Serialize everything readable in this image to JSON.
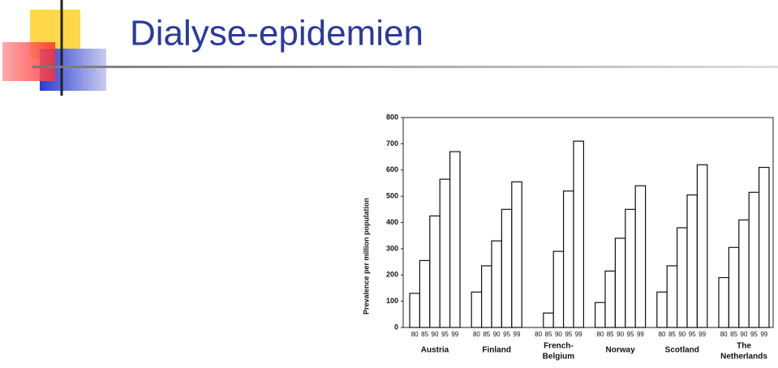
{
  "slide_title": "Dialyse-epidemien",
  "chart_data": {
    "type": "grouped-bar",
    "y_label": "Prevalence per million population",
    "ylim": [
      0,
      800
    ],
    "yticks": [
      0,
      100,
      200,
      300,
      400,
      500,
      600,
      700,
      800
    ],
    "color": "#ffffff",
    "edge_color": "#111111",
    "groups": [
      {
        "label_lines": [
          "Austria"
        ],
        "categories": [
          "80",
          "85",
          "90",
          "95",
          "99"
        ],
        "values": [
          130,
          255,
          425,
          565,
          670
        ]
      },
      {
        "label_lines": [
          "Finland"
        ],
        "categories": [
          "80",
          "85",
          "90",
          "95",
          "99"
        ],
        "values": [
          135,
          235,
          330,
          450,
          555
        ]
      },
      {
        "label_lines": [
          "French-",
          "Belgium"
        ],
        "categories": [
          "80",
          "85",
          "90",
          "95",
          "99"
        ],
        "values": [
          null,
          55,
          290,
          520,
          710
        ]
      },
      {
        "label_lines": [
          "Norway"
        ],
        "categories": [
          "80",
          "85",
          "90",
          "95",
          "99"
        ],
        "values": [
          95,
          215,
          340,
          450,
          540
        ]
      },
      {
        "label_lines": [
          "Scotland"
        ],
        "categories": [
          "80",
          "85",
          "90",
          "95",
          "99"
        ],
        "values": [
          135,
          235,
          380,
          505,
          620
        ]
      },
      {
        "label_lines": [
          "The",
          "Netherlands"
        ],
        "categories": [
          "80",
          "85",
          "90",
          "95",
          "99"
        ],
        "values": [
          190,
          305,
          410,
          515,
          610
        ]
      }
    ]
  }
}
